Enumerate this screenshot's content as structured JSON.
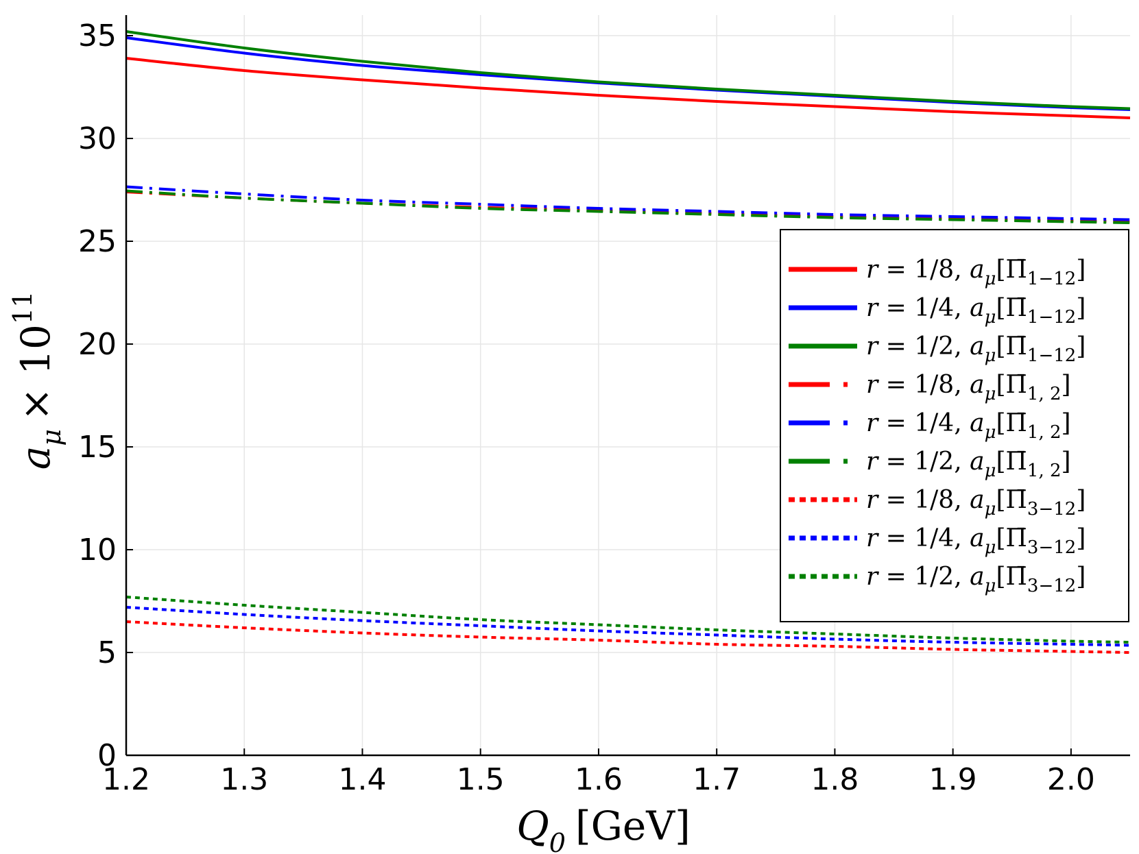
{
  "chart_data": {
    "type": "line",
    "title": "",
    "xlabel": {
      "main": "Q",
      "sub": "0",
      "unit": "[GeV]"
    },
    "ylabel": {
      "main": "a",
      "sub": "μ",
      "times": "× 10",
      "sup": "11"
    },
    "xlim": [
      1.2,
      2.05
    ],
    "ylim": [
      0,
      36
    ],
    "xticks": [
      1.2,
      1.3,
      1.4,
      1.5,
      1.6,
      1.7,
      1.8,
      1.9,
      2.0
    ],
    "xtick_labels": [
      "1.2",
      "1.3",
      "1.4",
      "1.5",
      "1.6",
      "1.7",
      "1.8",
      "1.9",
      "2.0"
    ],
    "yticks": [
      0,
      5,
      10,
      15,
      20,
      25,
      30,
      35
    ],
    "ytick_labels": [
      "0",
      "5",
      "10",
      "15",
      "20",
      "25",
      "30",
      "35"
    ],
    "grid": true,
    "legend_position": "right",
    "x": [
      1.2,
      1.3,
      1.4,
      1.5,
      1.6,
      1.7,
      1.8,
      1.9,
      2.0,
      2.05
    ],
    "series": [
      {
        "name": "r = 1/8, a_μ[Π̄_{1−12}]",
        "r": "1/8",
        "pi": "1−12",
        "color": "#ff0000",
        "style": "solid",
        "values": [
          33.9,
          33.3,
          32.85,
          32.45,
          32.1,
          31.8,
          31.55,
          31.3,
          31.1,
          31.0
        ]
      },
      {
        "name": "r = 1/4, a_μ[Π̄_{1−12}]",
        "r": "1/4",
        "pi": "1−12",
        "color": "#0000ff",
        "style": "solid",
        "values": [
          34.9,
          34.15,
          33.55,
          33.1,
          32.7,
          32.35,
          32.05,
          31.75,
          31.5,
          31.4
        ]
      },
      {
        "name": "r = 1/2, a_μ[Π̄_{1−12}]",
        "r": "1/2",
        "pi": "1−12",
        "color": "#008000",
        "style": "solid",
        "values": [
          35.2,
          34.4,
          33.75,
          33.2,
          32.75,
          32.4,
          32.1,
          31.8,
          31.55,
          31.45
        ]
      },
      {
        "name": "r = 1/8, a_μ[Π̄_{1,2}]",
        "r": "1/8",
        "pi": "1, 2",
        "color": "#ff0000",
        "style": "dashdot",
        "values": [
          27.4,
          27.1,
          26.85,
          26.65,
          26.5,
          26.35,
          26.2,
          26.1,
          26.0,
          25.95
        ]
      },
      {
        "name": "r = 1/4, a_μ[Π̄_{1,2}]",
        "r": "1/4",
        "pi": "1, 2",
        "color": "#0000ff",
        "style": "dashdot",
        "values": [
          27.65,
          27.3,
          27.0,
          26.8,
          26.6,
          26.45,
          26.3,
          26.2,
          26.1,
          26.05
        ]
      },
      {
        "name": "r = 1/2, a_μ[Π̄_{1,2}]",
        "r": "1/2",
        "pi": "1, 2",
        "color": "#008000",
        "style": "dashdot",
        "values": [
          27.45,
          27.1,
          26.85,
          26.6,
          26.45,
          26.3,
          26.15,
          26.05,
          25.95,
          25.9
        ]
      },
      {
        "name": "r = 1/8, a_μ[Π̄_{3−12}]",
        "r": "1/8",
        "pi": "3−12",
        "color": "#ff0000",
        "style": "dotted",
        "values": [
          6.5,
          6.2,
          5.95,
          5.75,
          5.6,
          5.4,
          5.3,
          5.15,
          5.05,
          5.0
        ]
      },
      {
        "name": "r = 1/4, a_μ[Π̄_{3−12}]",
        "r": "1/4",
        "pi": "3−12",
        "color": "#0000ff",
        "style": "dotted",
        "values": [
          7.2,
          6.85,
          6.55,
          6.3,
          6.05,
          5.85,
          5.65,
          5.5,
          5.4,
          5.35
        ]
      },
      {
        "name": "r = 1/2, a_μ[Π̄_{3−12}]",
        "r": "1/2",
        "pi": "3−12",
        "color": "#008000",
        "style": "dotted",
        "values": [
          7.7,
          7.3,
          6.95,
          6.6,
          6.35,
          6.1,
          5.9,
          5.7,
          5.55,
          5.5
        ]
      }
    ]
  }
}
